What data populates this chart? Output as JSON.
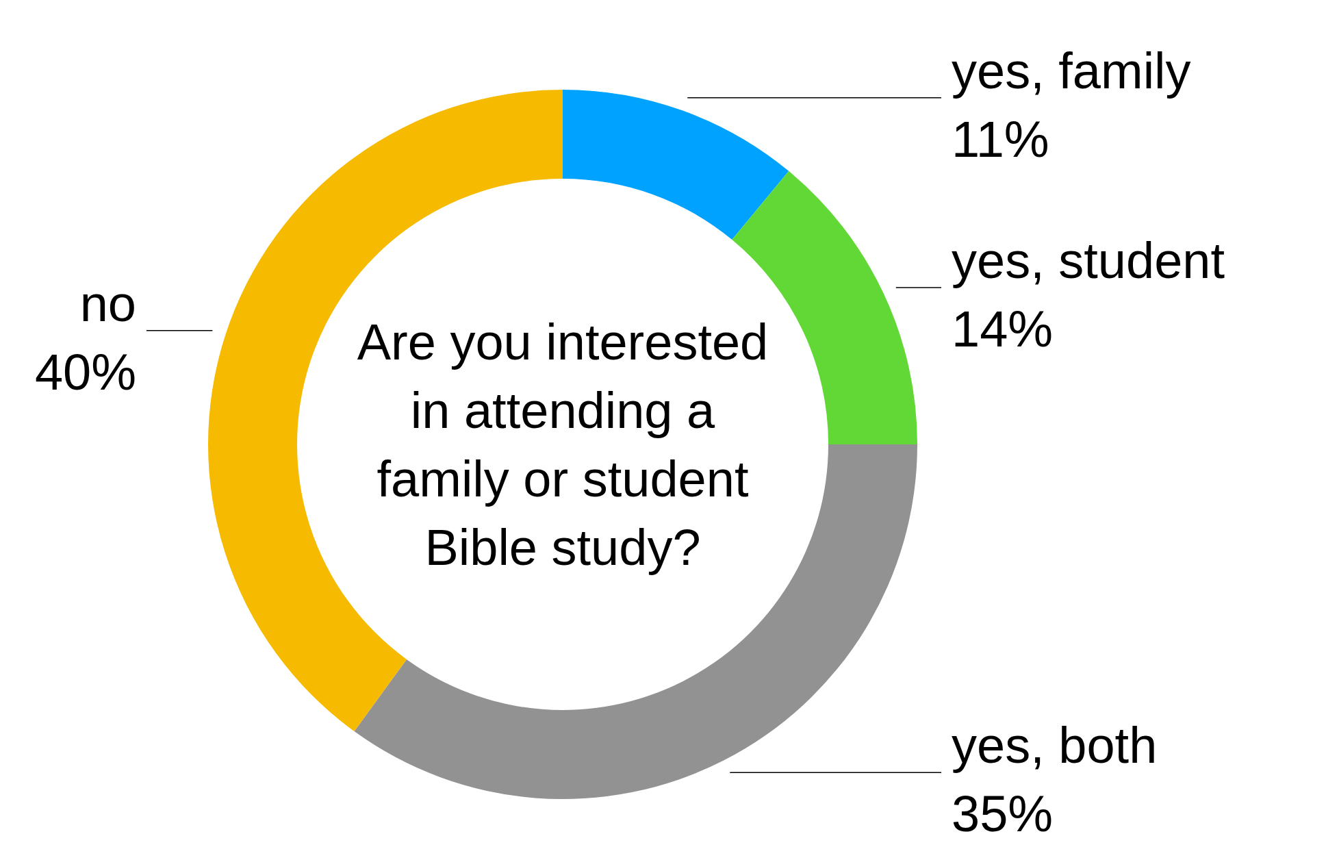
{
  "chart_data": {
    "type": "donut",
    "title": "Are you interested in attending a family or student Bible study?",
    "categories": [
      "yes, family",
      "yes, student",
      "yes, both",
      "no"
    ],
    "values": [
      11,
      14,
      35,
      40
    ],
    "colors": [
      "#00a2ff",
      "#61d836",
      "#929292",
      "#f6ba00"
    ],
    "value_labels": [
      "11%",
      "14%",
      "35%",
      "40%"
    ]
  }
}
